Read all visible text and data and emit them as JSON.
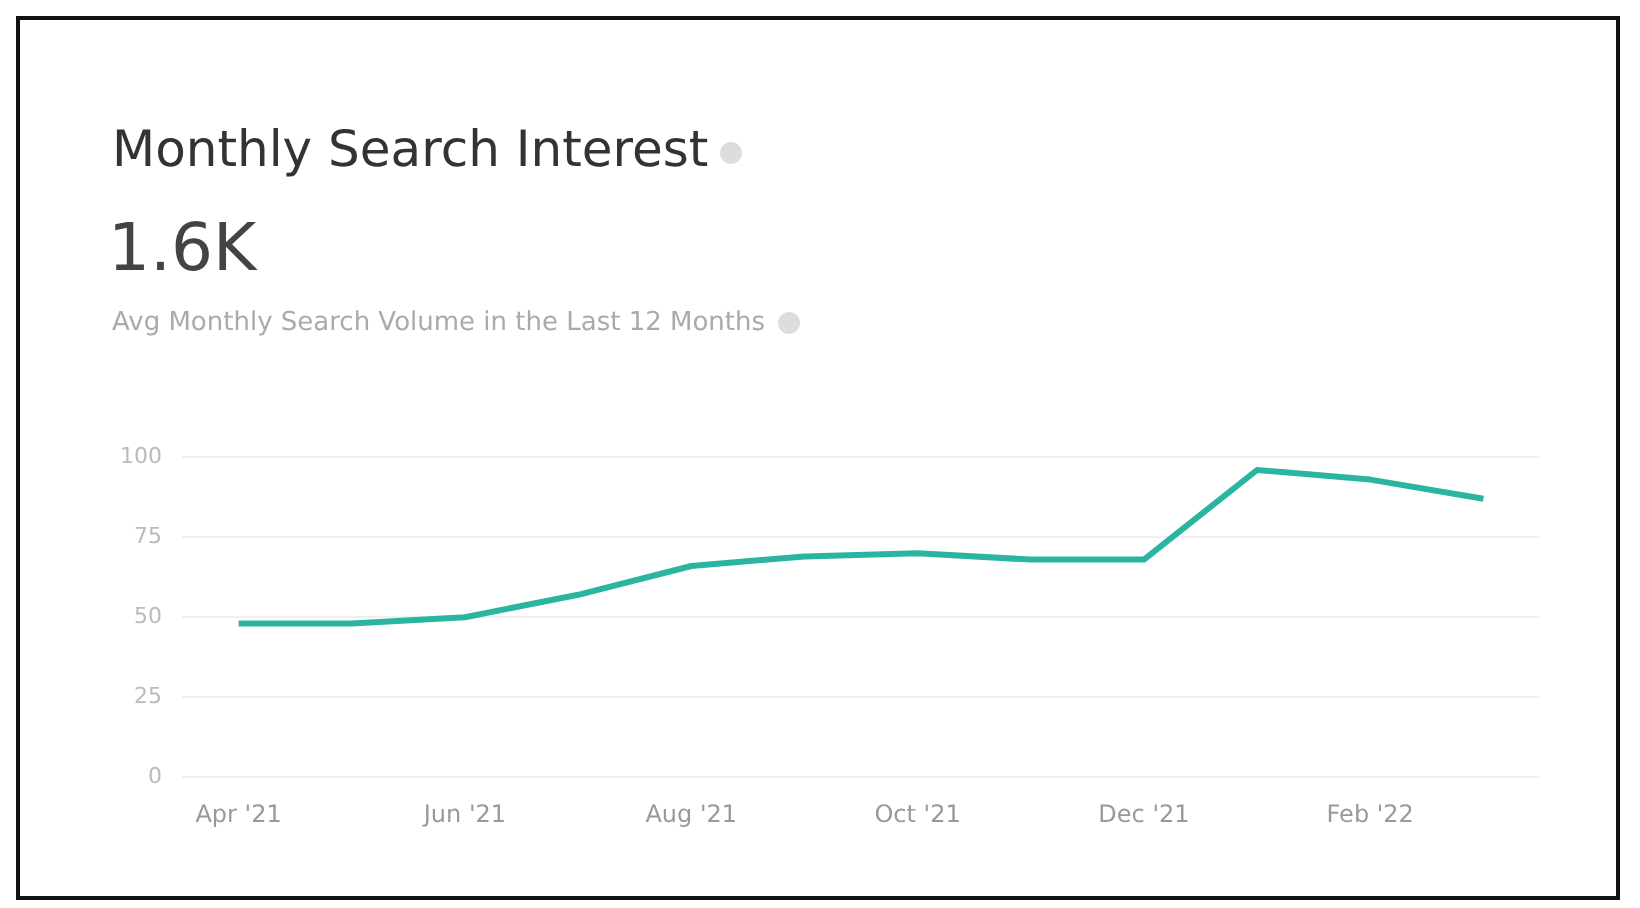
{
  "chart_data": {
    "type": "line",
    "title": "Monthly Search Interest",
    "subtitle": "1.6K",
    "annotations": [
      "Avg Monthly Search Volume in the Last 12 Months"
    ],
    "categories": [
      "Apr '21",
      null,
      "Jun '21",
      null,
      "Aug '21",
      null,
      "Oct '21",
      null,
      "Dec '21",
      null,
      "Feb '22",
      null
    ],
    "series": [
      {
        "color": "#2bb5a0",
        "values": [
          48,
          48,
          50,
          57,
          66,
          69,
          70,
          68,
          68,
          96,
          93,
          87
        ]
      }
    ],
    "ylim": [
      0,
      100
    ],
    "yticks": [
      0,
      25,
      50,
      75,
      100
    ],
    "grid": "y",
    "legend": false,
    "marker": "none",
    "line_style": "solid"
  }
}
